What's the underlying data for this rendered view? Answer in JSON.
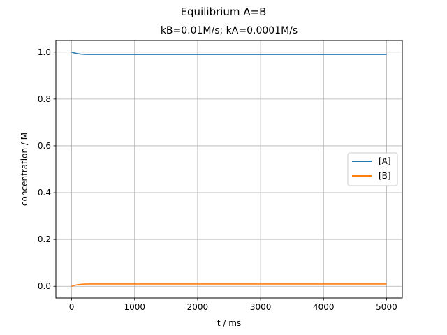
{
  "chart_data": {
    "type": "line",
    "title": "Equilibrium A=B",
    "subtitle": "kB=0.01M/s; kA=0.0001M/s",
    "xlabel": "t / ms",
    "ylabel": "concentration / M",
    "xlim": [
      -250,
      5250
    ],
    "ylim": [
      -0.05,
      1.05
    ],
    "xticks": [
      0,
      1000,
      2000,
      3000,
      4000,
      5000
    ],
    "xtick_labels": [
      "0",
      "1000",
      "2000",
      "3000",
      "4000",
      "5000"
    ],
    "yticks": [
      0.0,
      0.2,
      0.4,
      0.6,
      0.8,
      1.0
    ],
    "ytick_labels": [
      "0.0",
      "0.2",
      "0.4",
      "0.6",
      "0.8",
      "1.0"
    ],
    "grid": true,
    "legend_position": "center-right",
    "series": [
      {
        "name": "[A]",
        "color": "#1f77b4",
        "x": [
          0,
          25,
          50,
          75,
          100,
          150,
          200,
          300,
          400,
          600,
          1000,
          2000,
          3000,
          4000,
          5000
        ],
        "y": [
          1.0,
          0.9978,
          0.9959,
          0.9944,
          0.9932,
          0.9915,
          0.9906,
          0.9902,
          0.9901,
          0.9901,
          0.9901,
          0.9901,
          0.9901,
          0.9901,
          0.9901
        ]
      },
      {
        "name": "[B]",
        "color": "#ff7f0e",
        "x": [
          0,
          25,
          50,
          75,
          100,
          150,
          200,
          300,
          400,
          600,
          1000,
          2000,
          3000,
          4000,
          5000
        ],
        "y": [
          0.0,
          0.0022,
          0.0041,
          0.0056,
          0.0068,
          0.0085,
          0.0094,
          0.0098,
          0.0099,
          0.0099,
          0.0099,
          0.0099,
          0.0099,
          0.0099,
          0.0099
        ]
      }
    ]
  }
}
